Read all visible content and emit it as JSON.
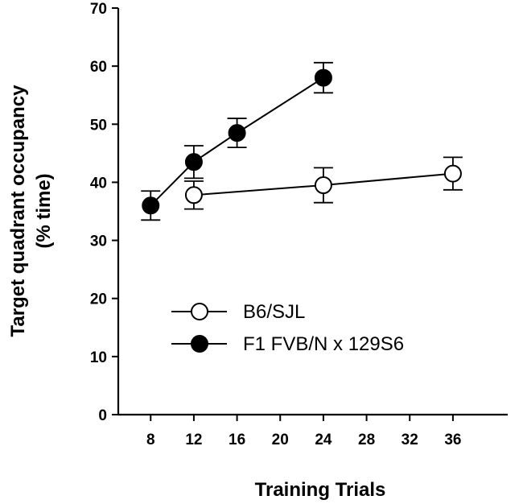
{
  "chart_data": {
    "type": "line",
    "title": "",
    "xlabel": "Training Trials",
    "ylabel_line1": "Target quadrant occupancy",
    "ylabel_line2": "(% time)",
    "xlim": [
      5,
      41
    ],
    "ylim": [
      0,
      70
    ],
    "xticks": [
      8,
      12,
      16,
      20,
      24,
      28,
      32,
      36
    ],
    "yticks": [
      0,
      10,
      20,
      30,
      40,
      50,
      60,
      70
    ],
    "legend_position": "lower-middle",
    "series": [
      {
        "name": "B6/SJL",
        "marker": "open-circle",
        "x": [
          12,
          24,
          36
        ],
        "y": [
          37.8,
          39.5,
          41.5
        ],
        "error": [
          2.4,
          3.0,
          2.8
        ]
      },
      {
        "name": "F1 FVB/N x 129S6",
        "marker": "filled-circle",
        "x": [
          8,
          12,
          16,
          24
        ],
        "y": [
          36.0,
          43.5,
          48.5,
          58.0
        ],
        "error": [
          2.5,
          2.8,
          2.5,
          2.6
        ]
      }
    ]
  }
}
